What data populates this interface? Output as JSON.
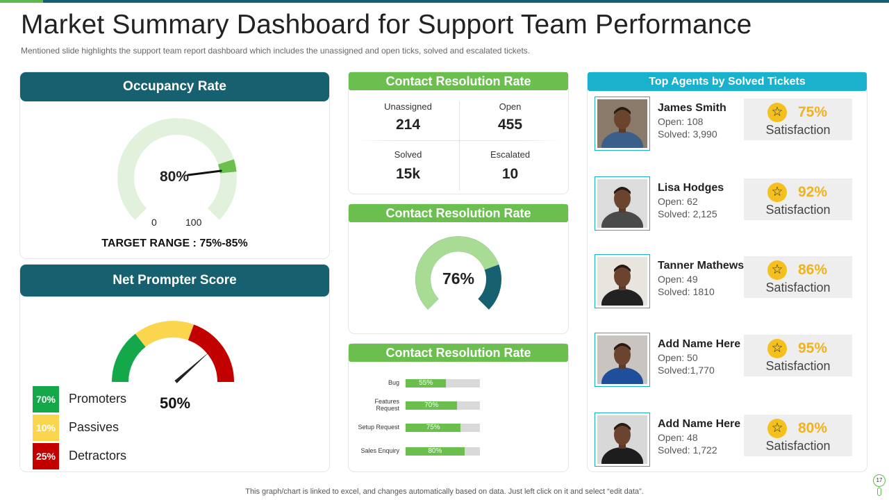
{
  "page": {
    "title": "Market Summary Dashboard for Support Team Performance",
    "subtitle": "Mentioned slide highlights the support team report dashboard which includes the unassigned and open ticks, solved and escalated tickets.",
    "footer": "This graph/chart is linked to excel, and changes automatically based on data. Just left click on it and select “edit data”.",
    "page_number": "17"
  },
  "colors": {
    "teal": "#16606f",
    "green": "#6bbf4e",
    "cyan": "#1ab1cc",
    "light_green": "#e1f1dc",
    "gold": "#f0b21e"
  },
  "occupancy": {
    "title": "Occupancy Rate",
    "value_label": "80%",
    "value": 80,
    "min_label": "0",
    "max_label": "100",
    "target": "TARGET RANGE : 75%-85%"
  },
  "nps": {
    "title": "Net Prompter Score",
    "value_label": "50%",
    "needle_value": 0.78,
    "legend": [
      {
        "pct": "70%",
        "label": "Promoters",
        "color": "#15a84a"
      },
      {
        "pct": "10%",
        "label": "Passives",
        "color": "#fbd54d"
      },
      {
        "pct": "25%",
        "label": "Detractors",
        "color": "#c30000"
      }
    ]
  },
  "contact_stats": {
    "title": "Contact Resolution Rate",
    "items": [
      {
        "label": "Unassigned",
        "value": "214"
      },
      {
        "label": "Open",
        "value": "455"
      },
      {
        "label": "Solved",
        "value": "15k"
      },
      {
        "label": "Escalated",
        "value": "10"
      }
    ]
  },
  "contact_donut": {
    "title": "Contact Resolution Rate",
    "value_label": "76%",
    "value": 76
  },
  "contact_bars": {
    "title": "Contact Resolution Rate",
    "chart_data": {
      "type": "bar",
      "orientation": "horizontal",
      "categories": [
        "Bug",
        "Features Request",
        "Setup Request",
        "Sales Enquiry"
      ],
      "values": [
        55,
        70,
        75,
        80
      ],
      "value_labels": [
        "55%",
        "70%",
        "75%",
        "80%"
      ],
      "xlim": [
        0,
        100
      ]
    }
  },
  "agents": {
    "title": "Top Agents by Solved Tickets",
    "satisfaction_label": "Satisfaction",
    "list": [
      {
        "name": "James Smith",
        "open": "Open: 108",
        "solved": "Solved: 3,990",
        "satisfaction": "75%"
      },
      {
        "name": "Lisa Hodges",
        "open": "Open: 62",
        "solved": "Solved: 2,125",
        "satisfaction": "92%"
      },
      {
        "name": "Tanner Mathews",
        "open": "Open: 49",
        "solved": "Solved: 1810",
        "satisfaction": "86%"
      },
      {
        "name": "Add Name Here",
        "open": "Open: 50",
        "solved": "Solved:1,770",
        "satisfaction": "95%"
      },
      {
        "name": "Add Name Here",
        "open": "Open: 48",
        "solved": "Solved: 1,722",
        "satisfaction": "80%"
      }
    ]
  }
}
